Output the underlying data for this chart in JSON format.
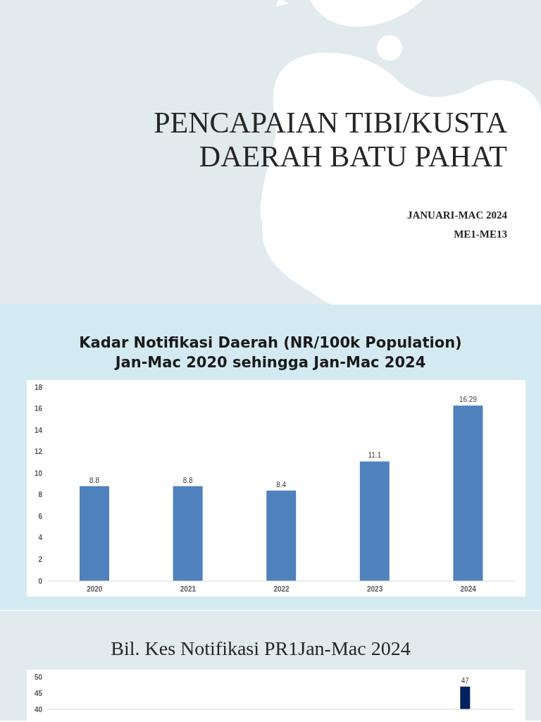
{
  "chart_data": [
    {
      "type": "other",
      "title": "PENCAPAIAN TIBI/KUSTA\nDAERAH BATU PAHAT",
      "annotations": [
        "JANUARI-MAC 2024",
        "ME1-ME13"
      ]
    },
    {
      "type": "bar",
      "title": "Kadar Notifikasi Daerah (NR/100k Population)\nJan-Mac 2020 sehingga Jan-Mac 2024",
      "categories": [
        "2020",
        "2021",
        "2022",
        "2023",
        "2024"
      ],
      "values": [
        8.8,
        8.8,
        8.4,
        11.1,
        16.29
      ],
      "color": "#4f81bd",
      "ylim": [
        0,
        18
      ],
      "yticks": [
        0,
        2,
        4,
        6,
        8,
        10,
        12,
        14,
        16,
        18
      ],
      "data_labels": true
    },
    {
      "type": "bar",
      "title": "Bil. Kes Notifikasi PR1Jan-Mac 2024",
      "categories": [
        null,
        null,
        null,
        null,
        null,
        null,
        null,
        null,
        null,
        null,
        null,
        null,
        null,
        null
      ],
      "values": [
        null,
        null,
        null,
        null,
        null,
        null,
        null,
        null,
        null,
        null,
        null,
        null,
        47,
        null
      ],
      "color": "#002060",
      "ylim": [
        40,
        50
      ],
      "yticks": [
        40,
        45,
        50
      ],
      "data_labels": true,
      "tick_labels": "y"
    }
  ]
}
